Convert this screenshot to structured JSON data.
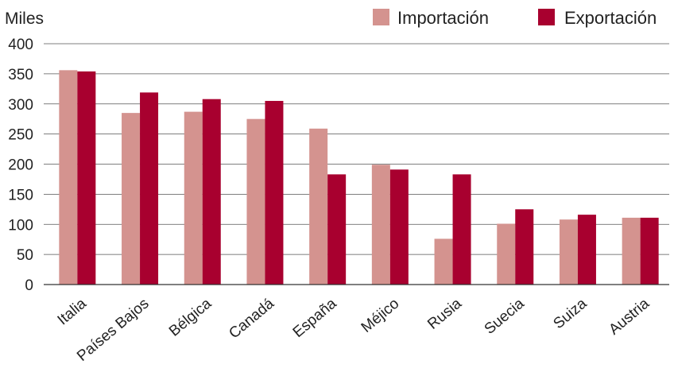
{
  "chart_data": {
    "type": "bar",
    "unit_label": "Miles",
    "categories": [
      "Italia",
      "Países Bajos",
      "Bélgica",
      "Canadá",
      "España",
      "Méjico",
      "Rusia",
      "Suecia",
      "Suiza",
      "Austria"
    ],
    "series": [
      {
        "name": "Importación",
        "color": "#d4938f",
        "values": [
          356,
          285,
          287,
          275,
          259,
          199,
          76,
          101,
          108,
          111
        ]
      },
      {
        "name": "Exportación",
        "color": "#a8002f",
        "values": [
          354,
          319,
          308,
          305,
          183,
          191,
          183,
          125,
          116,
          111
        ]
      }
    ],
    "ylim": [
      0,
      400
    ],
    "yticks": [
      0,
      50,
      100,
      150,
      200,
      250,
      300,
      350,
      400
    ],
    "grid": true,
    "legend_position": "top-right"
  }
}
